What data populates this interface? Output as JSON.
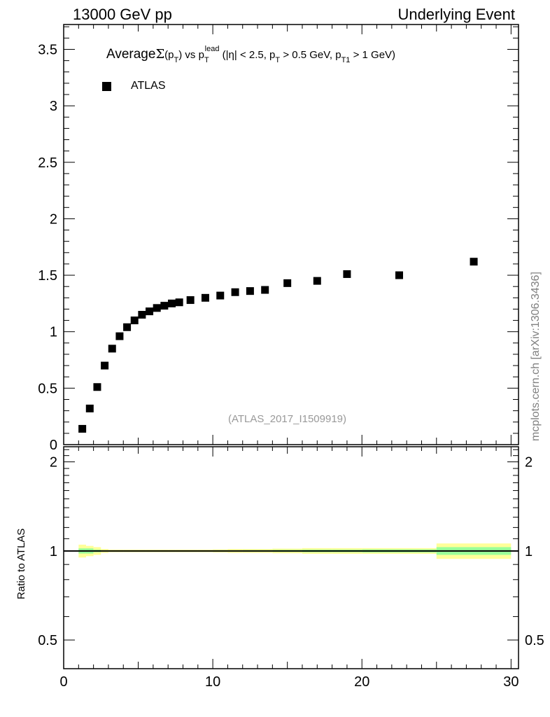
{
  "header": {
    "left": "13000 GeV pp",
    "right": "Underlying Event"
  },
  "title_parts": {
    "average": "Average",
    "sigma": "Σ",
    "p1": "(p",
    "t1": "T",
    "p1b": ")",
    "vs": "vs p",
    "t2": "T",
    "lead": "lead",
    "cond1": "(|η| < 2.5, p",
    "t3": "T",
    "cond2": "> 0.5 GeV, p",
    "t4": "T1",
    "cond3": "> 1 GeV)"
  },
  "side_label": "mcplots.cern.ch [arXiv:1306.3436]",
  "analysis_label": "(ATLAS_2017_I1509919)",
  "colors": {
    "marker": "#000000",
    "band_total": "#ffff99",
    "band_stat": "#99ff99",
    "side_text": "#808080"
  },
  "chart_data": [
    {
      "type": "scatter",
      "title": "Average Σ(pT) vs pT lead (|η| < 2.5, pT > 0.5 GeV, pT1 > 1 GeV)",
      "xlabel": "",
      "ylabel": "",
      "xlim": [
        0,
        30.5
      ],
      "ylim": [
        0,
        3.72
      ],
      "xticks": [
        "0",
        "10",
        "20",
        "30"
      ],
      "yticks": [
        "0",
        "0.5",
        "1",
        "1.5",
        "2",
        "2.5",
        "3",
        "3.5"
      ],
      "legend": {
        "entries": [
          "ATLAS"
        ],
        "placement": "top-left"
      },
      "series": [
        {
          "name": "ATLAS",
          "bin_edges": [
            1,
            1.5,
            2,
            2.5,
            3,
            3.5,
            4,
            4.5,
            5,
            5.5,
            6,
            6.5,
            7,
            7.5,
            8,
            9,
            10,
            11,
            12,
            13,
            14,
            16,
            18,
            20,
            25,
            30
          ],
          "x": [
            1.25,
            1.75,
            2.25,
            2.75,
            3.25,
            3.75,
            4.25,
            4.75,
            5.25,
            5.75,
            6.25,
            6.75,
            7.25,
            7.75,
            8.5,
            9.5,
            10.5,
            11.5,
            12.5,
            13.5,
            15,
            17,
            19,
            22.5,
            27.5
          ],
          "y": [
            0.14,
            0.32,
            0.51,
            0.7,
            0.85,
            0.96,
            1.04,
            1.1,
            1.15,
            1.18,
            1.21,
            1.23,
            1.25,
            1.26,
            1.28,
            1.3,
            1.32,
            1.35,
            1.36,
            1.37,
            1.43,
            1.45,
            1.51,
            1.5,
            1.62
          ]
        }
      ]
    },
    {
      "type": "area",
      "ylabel": "Ratio to ATLAS",
      "yscale": "log",
      "ylim": [
        0.4,
        2.25
      ],
      "yticks": [
        "0.5",
        "1",
        "2"
      ],
      "xticks": [
        "0",
        "10",
        "20",
        "30"
      ],
      "xlim": [
        0,
        30.5
      ],
      "reference": 1,
      "total_rel_err": [
        0.05,
        0.04,
        0.03,
        0.015,
        0.01,
        0.01,
        0.01,
        0.01,
        0.01,
        0.01,
        0.01,
        0.01,
        0.01,
        0.01,
        0.01,
        0.01,
        0.012,
        0.015,
        0.015,
        0.015,
        0.018,
        0.022,
        0.022,
        0.022,
        0.06
      ],
      "stat_rel_err": [
        0.02,
        0.02,
        0.01,
        0.005,
        0.004,
        0.004,
        0.004,
        0.004,
        0.004,
        0.004,
        0.004,
        0.004,
        0.004,
        0.004,
        0.004,
        0.004,
        0.005,
        0.005,
        0.006,
        0.006,
        0.008,
        0.01,
        0.01,
        0.012,
        0.03
      ]
    }
  ]
}
